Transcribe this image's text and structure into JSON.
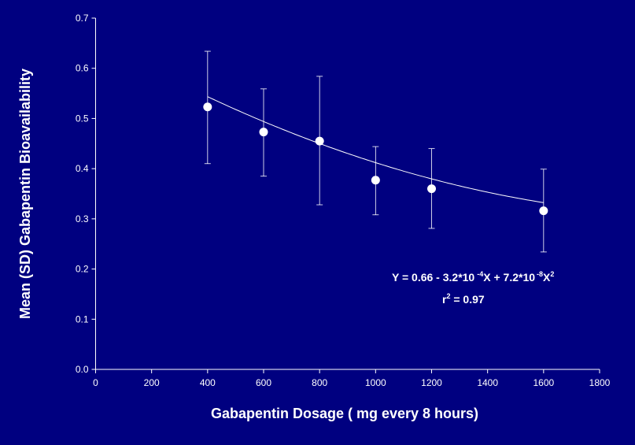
{
  "colors": {
    "background": "#000080",
    "foreground": "#ffffff"
  },
  "chart_data": {
    "type": "scatter",
    "title": "",
    "xlabel": "Gabapentin Dosage ( mg every 8 hours)",
    "ylabel": "Mean (SD) Gabapentin Bioavailability",
    "xlim": [
      0,
      1800
    ],
    "ylim": [
      0,
      0.7
    ],
    "xticks": [
      "0",
      "200",
      "400",
      "600",
      "800",
      "1000",
      "1200",
      "1400",
      "1600",
      "1800"
    ],
    "yticks": [
      "0.0",
      "0.1",
      "0.2",
      "0.3",
      "0.4",
      "0.5",
      "0.6",
      "0.7"
    ],
    "grid": false,
    "points": [
      {
        "x": 400,
        "y": 0.523,
        "sd_low": 0.41,
        "sd_high": 0.634
      },
      {
        "x": 600,
        "y": 0.473,
        "sd_low": 0.385,
        "sd_high": 0.559
      },
      {
        "x": 800,
        "y": 0.455,
        "sd_low": 0.328,
        "sd_high": 0.584
      },
      {
        "x": 1000,
        "y": 0.377,
        "sd_low": 0.308,
        "sd_high": 0.444
      },
      {
        "x": 1200,
        "y": 0.36,
        "sd_low": 0.281,
        "sd_high": 0.44
      },
      {
        "x": 1600,
        "y": 0.316,
        "sd_low": 0.234,
        "sd_high": 0.399
      }
    ],
    "fit": {
      "type": "quadratic",
      "a": 0.66,
      "b": -0.00032,
      "c": 7.2e-08,
      "x_range": [
        400,
        1600
      ]
    },
    "annotation": {
      "eq_main": "Y = 0.66 - 3.2*10",
      "eq_exp1": "-4",
      "eq_mid": "X + 7.2*10",
      "eq_exp2": "-8",
      "eq_end": "X",
      "eq_exp3": "2",
      "r_label": "r",
      "r_exp": "2",
      "r_value": " = 0.97"
    }
  }
}
